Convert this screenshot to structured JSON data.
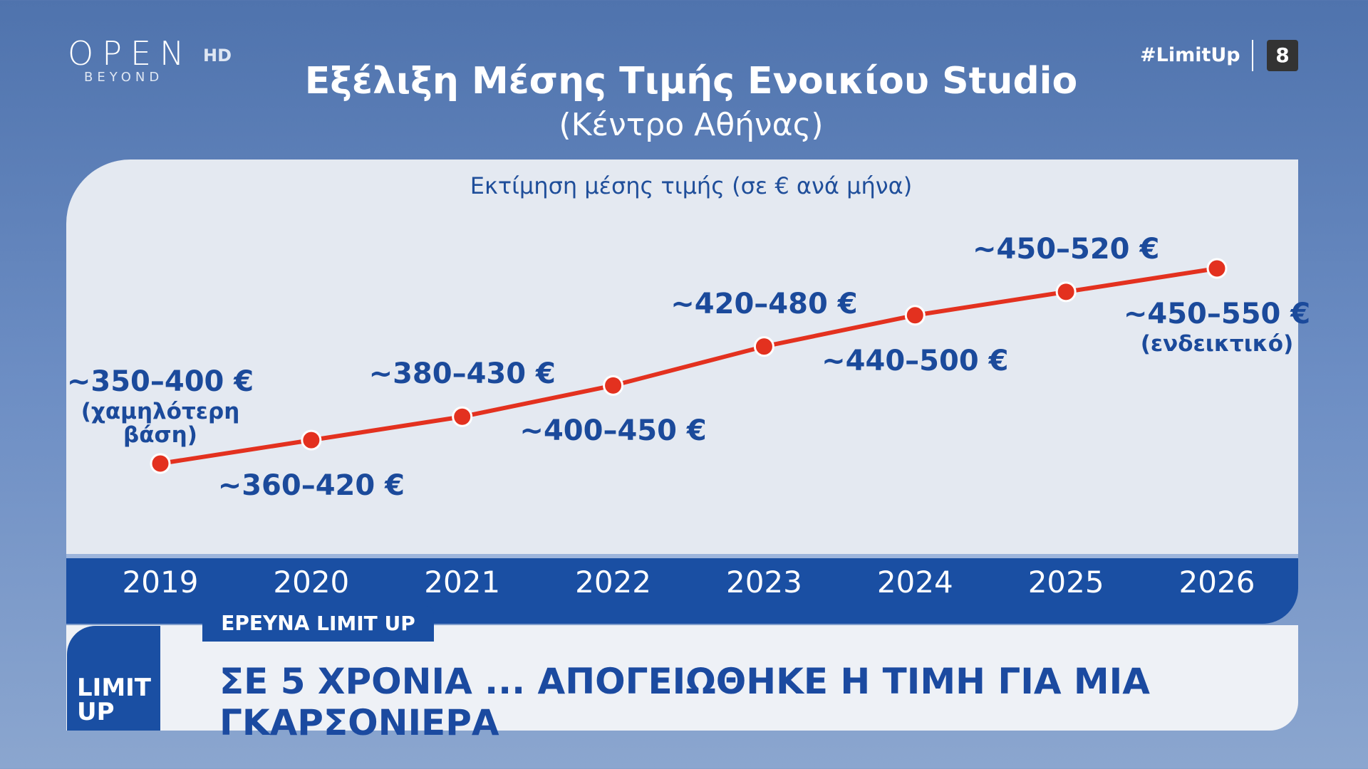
{
  "broadcast": {
    "logo": "OPEN",
    "logo_hd": "HD",
    "logo_sub": "BEYOND",
    "hashtag": "#LimitUp",
    "channel": "8",
    "tag": "ΕΡΕΥΝΑ LIMIT UP",
    "headline": "ΣΕ 5 ΧΡΟΝΙΑ ... ΑΠΟΓΕΙΩΘΗΚΕ Η ΤΙΜΗ ΓΙΑ ΜΙΑ ΓΚΑΡΣΟΝΙΕΡΑ",
    "show_logo_1": "LIMIT",
    "show_logo_2": "UP"
  },
  "chart_data": {
    "type": "line",
    "title": "Εξέλιξη Μέσης Τιμής Ενοικίου Studio",
    "subtitle": "(Κέντρο Αθήνας)",
    "y_label": "Εκτίμηση μέσης τιμής (σε € ανά μήνα)",
    "categories": [
      "2019",
      "2020",
      "2021",
      "2022",
      "2023",
      "2024",
      "2025",
      "2026"
    ],
    "low": [
      350,
      360,
      380,
      400,
      420,
      440,
      450,
      450
    ],
    "high": [
      400,
      420,
      430,
      450,
      480,
      500,
      520,
      550
    ],
    "value_labels": [
      "~350–400 €",
      "~360–420 €",
      "~380–430 €",
      "~400–450 €",
      "~420–480 €",
      "~440–500 €",
      "~450–520 €",
      "~450–550 €"
    ],
    "value_notes": [
      "(χαμηλότερη βάση)",
      null,
      null,
      null,
      null,
      null,
      null,
      "(ενδεικτικό)"
    ],
    "color": "#e3311f"
  }
}
